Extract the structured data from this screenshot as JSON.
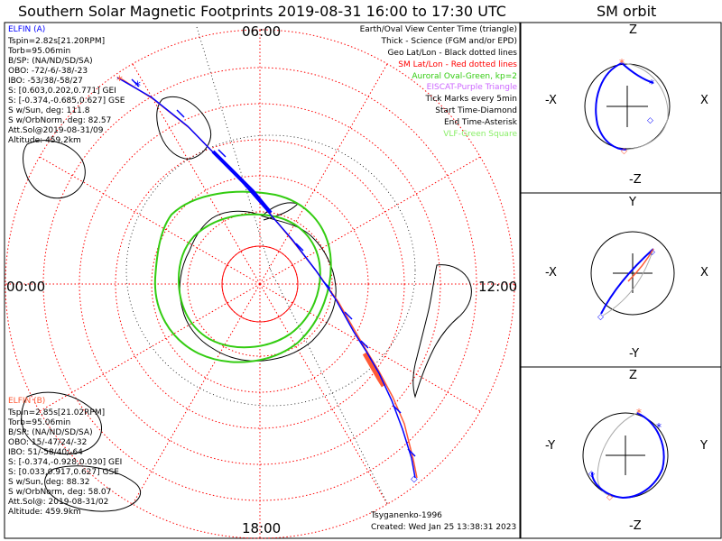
{
  "title": "Southern Solar Magnetic Footprints 2019-08-31 16:00 to 17:30 UTC",
  "sm_orbit_title": "SM orbit",
  "colors": {
    "blue": "#0000ff",
    "red": "#ff5a36",
    "green": "#33cc11",
    "grid": "#ff0000",
    "gray": "#aaaaaa",
    "purple": "#cc66ff",
    "vlf": "#88ee66"
  },
  "time_labels": {
    "top": "06:00",
    "left": "00:00",
    "right": "12:00",
    "bottom": "18:00"
  },
  "legend": [
    {
      "text": "Earth/Oval View Center Time (triangle)",
      "color": "#000000"
    },
    {
      "text": "Thick - Science (FGM and/or EPD)",
      "color": "#000000"
    },
    {
      "text": "Geo Lat/Lon - Black dotted lines",
      "color": "#000000"
    },
    {
      "text": "SM Lat/Lon - Red dotted lines",
      "color": "#ff0000"
    },
    {
      "text": "Auroral Oval-Green, kp=2",
      "color": "#33cc11"
    },
    {
      "text": "EISCAT-Purple Triangle",
      "color": "#cc66ff"
    },
    {
      "text": "Tick Marks every 5min",
      "color": "#000000"
    },
    {
      "text": "Start Time-Diamond",
      "color": "#000000"
    },
    {
      "text": "End Time-Asterisk",
      "color": "#000000"
    },
    {
      "text": "VLF-Green Square",
      "color": "#88ee66"
    }
  ],
  "elfin_a": {
    "label": "ELFIN (A)",
    "lines": [
      "Tspin=2.82s[21.20RPM]",
      "Torb=95.06min",
      "B/SP: (NA/ND/SD/SA)",
      "OBO: -72/-6/-38/-23",
      "IBO: -53/38/-58/27",
      "S: [0.603,0.202,0.771] GEI",
      "S: [-0.374,-0.685,0.627] GSE",
      "S w/Sun, deg: 111.8",
      "S w/OrbNorm, deg: 82.57",
      "Att.Sol@2019-08-31/09",
      "Altitude: 459.2km"
    ]
  },
  "elfin_b": {
    "label": "ELFIN (B)",
    "lines": [
      "Tspin=2.85s[21.02RPM]",
      "Torb=95.06min",
      "B/SP: (NA/ND/SD/SA)",
      "OBO: 15/-47/24/-32",
      "IBO: 51/-58/40/-64",
      "S: [-0.374,-0.928,0.030] GEI",
      "S: [0.033,0.917,0.627] GSE",
      "S w/Sun, deg: 88.32",
      "S w/OrbNorm, deg: 58.07",
      "Att.Sol@: 2019-08-31/02",
      "Altitude: 459.9km"
    ]
  },
  "footer": {
    "model": "Tsyganenko-1996",
    "created": "Created: Wed Jan 25 13:38:31 2023"
  },
  "orbit_panels": [
    {
      "top": "Z",
      "bottom": "-Z",
      "left": "-X",
      "right": "X"
    },
    {
      "top": "Y",
      "bottom": "-Y",
      "left": "-X",
      "right": "X"
    },
    {
      "top": "Z",
      "bottom": "-Z",
      "left": "-Y",
      "right": "Y"
    }
  ]
}
